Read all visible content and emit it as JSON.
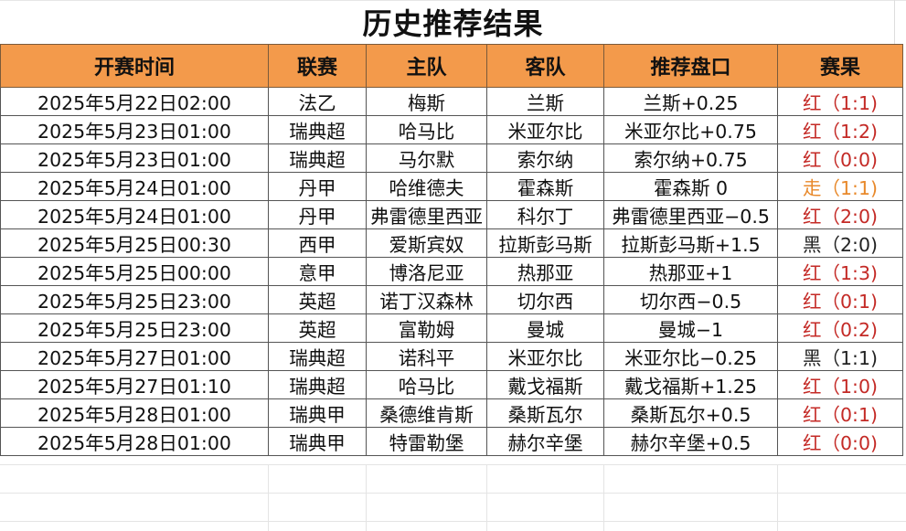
{
  "title": "历史推荐结果",
  "headers": [
    "开赛时间",
    "联赛",
    "主队",
    "客队",
    "推荐盘口",
    "赛果"
  ],
  "colors": {
    "header_bg": "#f39a4b",
    "red": "#c42a26",
    "draw": "#e8892b",
    "black": "#222222"
  },
  "rows": [
    {
      "time": "2025年5月22日02:00",
      "league": "法乙",
      "home": "梅斯",
      "away": "兰斯",
      "pick": "兰斯+0.25",
      "result": "红（1:1)",
      "status": "red"
    },
    {
      "time": "2025年5月23日01:00",
      "league": "瑞典超",
      "home": "哈马比",
      "away": "米亚尔比",
      "pick": "米亚尔比+0.75",
      "result": "红（1:2)",
      "status": "red"
    },
    {
      "time": "2025年5月23日01:00",
      "league": "瑞典超",
      "home": "马尔默",
      "away": "索尔纳",
      "pick": "索尔纳+0.75",
      "result": "红（0:0)",
      "status": "red"
    },
    {
      "time": "2025年5月24日01:00",
      "league": "丹甲",
      "home": "哈维德夫",
      "away": "霍森斯",
      "pick": "霍森斯 0",
      "result": "走（1:1)",
      "status": "orange"
    },
    {
      "time": "2025年5月24日01:00",
      "league": "丹甲",
      "home": "弗雷德里西亚",
      "away": "科尔丁",
      "pick": "弗雷德里西亚−0.5",
      "result": "红（2:0)",
      "status": "red"
    },
    {
      "time": "2025年5月25日00:30",
      "league": "西甲",
      "home": "爱斯宾奴",
      "away": "拉斯彭马斯",
      "pick": "拉斯彭马斯+1.5",
      "result": "黑（2:0)",
      "status": "black"
    },
    {
      "time": "2025年5月25日00:00",
      "league": "意甲",
      "home": "博洛尼亚",
      "away": "热那亚",
      "pick": "热那亚+1",
      "result": "红（1:3)",
      "status": "red"
    },
    {
      "time": "2025年5月25日23:00",
      "league": "英超",
      "home": "诺丁汉森林",
      "away": "切尔西",
      "pick": "切尔西−0.5",
      "result": "红（0:1)",
      "status": "red"
    },
    {
      "time": "2025年5月25日23:00",
      "league": "英超",
      "home": "富勒姆",
      "away": "曼城",
      "pick": "曼城−1",
      "result": "红（0:2)",
      "status": "red"
    },
    {
      "time": "2025年5月27日01:00",
      "league": "瑞典超",
      "home": "诺科平",
      "away": "米亚尔比",
      "pick": "米亚尔比−0.25",
      "result": "黑（1:1)",
      "status": "black"
    },
    {
      "time": "2025年5月27日01:10",
      "league": "瑞典超",
      "home": "哈马比",
      "away": "戴戈福斯",
      "pick": "戴戈福斯+1.25",
      "result": "红（1:0)",
      "status": "red"
    },
    {
      "time": "2025年5月28日01:00",
      "league": "瑞典甲",
      "home": "桑德维肯斯",
      "away": "桑斯瓦尔",
      "pick": "桑斯瓦尔+0.5",
      "result": "红（0:1)",
      "status": "red"
    },
    {
      "time": "2025年5月28日01:00",
      "league": "瑞典甲",
      "home": "特雷勒堡",
      "away": "赫尔辛堡",
      "pick": "赫尔辛堡+0.5",
      "result": "红（0:0)",
      "status": "red"
    }
  ]
}
